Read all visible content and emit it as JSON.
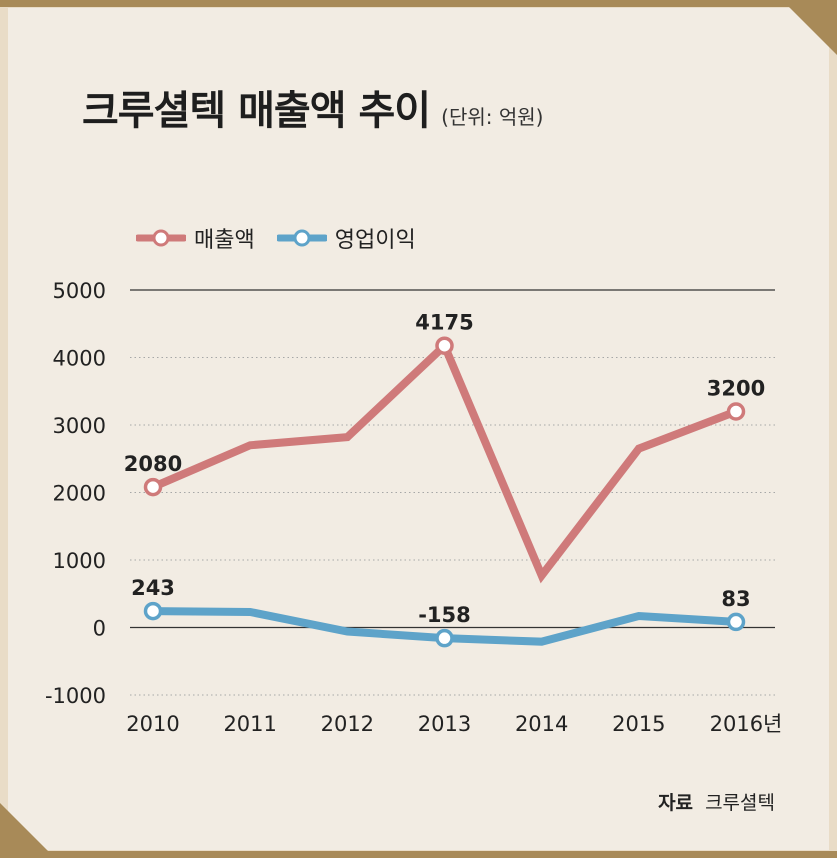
{
  "title": "크루셜텍 매출액 추이",
  "unit": "(단위: 억원)",
  "source_label": "자료",
  "source_value": "크루셜텍",
  "colors": {
    "revenue": "#cf7a7a",
    "operating_profit": "#5ea3c9",
    "background": "#f2ece3",
    "border": "#e9dcc7",
    "corner": "#a88a58"
  },
  "chart_data": {
    "type": "line",
    "categories": [
      "2010",
      "2011",
      "2012",
      "2013",
      "2014",
      "2015",
      "2016년"
    ],
    "yticks": [
      "5000",
      "4000",
      "3000",
      "2000",
      "1000",
      "0",
      "-1000"
    ],
    "ylim": [
      -1000,
      5000
    ],
    "legend_position": "top-left",
    "grid": "horizontal dotted",
    "series": [
      {
        "name": "매출액",
        "color": "#cf7a7a",
        "values": [
          2080,
          2700,
          2820,
          4175,
          770,
          2650,
          3200
        ],
        "labels": [
          {
            "index": 0,
            "text": "2080"
          },
          {
            "index": 3,
            "text": "4175"
          },
          {
            "index": 6,
            "text": "3200"
          }
        ]
      },
      {
        "name": "영업이익",
        "color": "#5ea3c9",
        "values": [
          243,
          230,
          -60,
          -158,
          -210,
          170,
          83
        ],
        "labels": [
          {
            "index": 0,
            "text": "243"
          },
          {
            "index": 3,
            "text": "-158"
          },
          {
            "index": 6,
            "text": "83"
          }
        ]
      }
    ]
  }
}
